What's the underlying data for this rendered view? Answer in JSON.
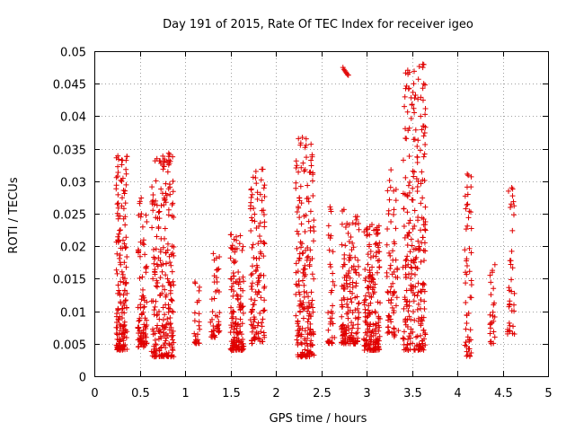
{
  "chart_data": {
    "type": "scatter",
    "title": "Day 191 of 2015, Rate Of TEC Index for receiver igeo",
    "xlabel": "GPS time / hours",
    "ylabel": "ROTI / TECUs",
    "xlim": [
      0,
      5
    ],
    "ylim": [
      0,
      0.05
    ],
    "xticks": [
      0,
      0.5,
      1,
      1.5,
      2,
      2.5,
      3,
      3.5,
      4,
      4.5,
      5
    ],
    "yticks": [
      0,
      0.005,
      0.01,
      0.015,
      0.02,
      0.025,
      0.03,
      0.035,
      0.04,
      0.045,
      0.05
    ],
    "xtick_labels": [
      "0",
      "0.5",
      "1",
      "1.5",
      "2",
      "2.5",
      "3",
      "3.5",
      "4",
      "4.5",
      "5"
    ],
    "ytick_labels": [
      "0",
      "0.005",
      "0.01",
      "0.015",
      "0.02",
      "0.025",
      "0.03",
      "0.035",
      "0.04",
      "0.045",
      "0.05"
    ],
    "grid": true,
    "marker": "+",
    "color": "#e00000",
    "clusters": [
      {
        "x_range": [
          0.24,
          0.36
        ],
        "y_range": [
          0.004,
          0.034
        ],
        "count": 160
      },
      {
        "x_range": [
          0.48,
          0.58
        ],
        "y_range": [
          0.0045,
          0.028
        ],
        "count": 90
      },
      {
        "x_range": [
          0.63,
          0.88
        ],
        "y_range": [
          0.003,
          0.034
        ],
        "count": 240
      },
      {
        "x_range": [
          1.1,
          1.16
        ],
        "y_range": [
          0.005,
          0.016
        ],
        "count": 25
      },
      {
        "x_range": [
          1.28,
          1.38
        ],
        "y_range": [
          0.006,
          0.019
        ],
        "count": 45
      },
      {
        "x_range": [
          1.5,
          1.65
        ],
        "y_range": [
          0.004,
          0.022
        ],
        "count": 140
      },
      {
        "x_range": [
          1.72,
          1.88
        ],
        "y_range": [
          0.005,
          0.033
        ],
        "count": 120
      },
      {
        "x_range": [
          2.22,
          2.42
        ],
        "y_range": [
          0.003,
          0.037
        ],
        "count": 200
      },
      {
        "x_range": [
          2.57,
          2.65
        ],
        "y_range": [
          0.005,
          0.027
        ],
        "count": 40
      },
      {
        "x_range": [
          2.72,
          2.92
        ],
        "y_range": [
          0.005,
          0.026
        ],
        "count": 150
      },
      {
        "x_range": [
          2.97,
          3.15
        ],
        "y_range": [
          0.004,
          0.024
        ],
        "count": 180
      },
      {
        "x_range": [
          3.22,
          3.35
        ],
        "y_range": [
          0.006,
          0.032
        ],
        "count": 70
      },
      {
        "x_range": [
          3.4,
          3.65
        ],
        "y_range": [
          0.004,
          0.048
        ],
        "count": 260
      },
      {
        "x_range": [
          4.08,
          4.16
        ],
        "y_range": [
          0.003,
          0.031
        ],
        "count": 50
      },
      {
        "x_range": [
          4.36,
          4.42
        ],
        "y_range": [
          0.005,
          0.019
        ],
        "count": 25
      },
      {
        "x_range": [
          4.55,
          4.63
        ],
        "y_range": [
          0.0065,
          0.029
        ],
        "count": 35
      }
    ],
    "outliers": [
      {
        "x": 2.74,
        "y": 0.0475
      },
      {
        "x": 2.75,
        "y": 0.0472
      },
      {
        "x": 2.76,
        "y": 0.047
      },
      {
        "x": 2.77,
        "y": 0.0468
      },
      {
        "x": 2.78,
        "y": 0.0466
      },
      {
        "x": 2.79,
        "y": 0.0464
      },
      {
        "x": 2.8,
        "y": 0.0463
      },
      {
        "x": 3.62,
        "y": 0.048
      },
      {
        "x": 3.62,
        "y": 0.0475
      },
      {
        "x": 3.63,
        "y": 0.045
      },
      {
        "x": 3.62,
        "y": 0.0443
      },
      {
        "x": 3.53,
        "y": 0.0428
      },
      {
        "x": 3.52,
        "y": 0.0412
      },
      {
        "x": 0.82,
        "y": 0.0343
      },
      {
        "x": 0.83,
        "y": 0.0341
      },
      {
        "x": 0.36,
        "y": 0.0338
      },
      {
        "x": 0.35,
        "y": 0.0332
      },
      {
        "x": 1.84,
        "y": 0.0302
      },
      {
        "x": 4.11,
        "y": 0.0311
      },
      {
        "x": 4.12,
        "y": 0.0309
      },
      {
        "x": 4.6,
        "y": 0.029
      },
      {
        "x": 4.61,
        "y": 0.0288
      }
    ]
  }
}
